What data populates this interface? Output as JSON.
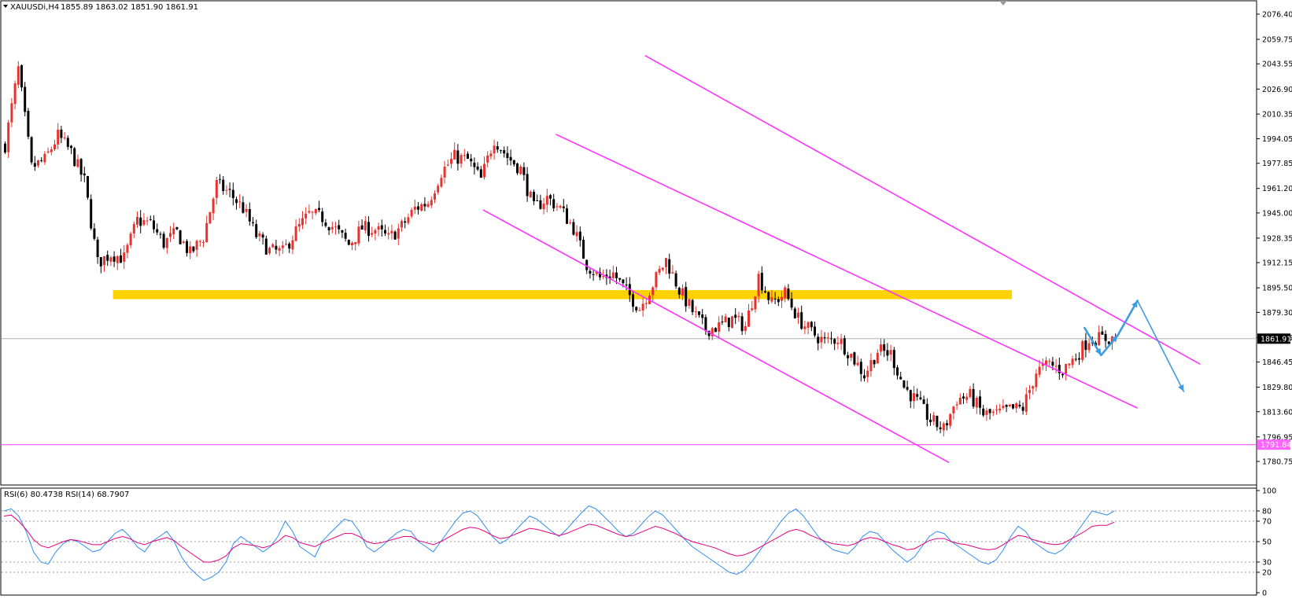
{
  "header": {
    "symbol_label": "XAUUSDi,H4",
    "ohlc_text": "1855.89 1863.02 1851.90 1861.91",
    "menu_icon": "triangle-down-icon"
  },
  "indicator": {
    "label": "RSI(6) 80.4738  RSI(14) 68.7907",
    "rsi6_last": 80.4738,
    "rsi14_last": 68.7907
  },
  "colors": {
    "background": "#ffffff",
    "bull_candle": "#e8322f",
    "bear_candle": "#000000",
    "channel": "#ff33ff",
    "support_zone": "#ffd200",
    "projection_arrow": "#3d9be0",
    "rsi6": "#2f8cf0",
    "rsi14": "#e6007e",
    "current_price_tag": "#000000",
    "low_level_tag": "#ff66ff"
  },
  "chart_data": [
    {
      "type": "candlestick",
      "symbol": "XAUUSDi",
      "timeframe": "H4",
      "ylim": [
        1780.75,
        2083
      ],
      "y_ticks": [
        "2076.40",
        "2059.75",
        "2043.55",
        "2026.90",
        "2010.35",
        "1994.05",
        "1977.85",
        "1961.20",
        "1945.00",
        "1928.35",
        "1912.15",
        "1895.50",
        "1879.30",
        "1862.65",
        "1846.45",
        "1829.80",
        "1813.60",
        "1796.95",
        "1780.75"
      ],
      "current_price": 1861.91,
      "current_price_label": "1861.91",
      "low_level": 1791.84,
      "low_level_label": "1791.84",
      "support_zone": [
        1888,
        1894
      ],
      "close_path": [
        [
          0,
          1990
        ],
        [
          4,
          2040
        ],
        [
          8,
          1975
        ],
        [
          12,
          1980
        ],
        [
          16,
          1996
        ],
        [
          20,
          1985
        ],
        [
          24,
          1966
        ],
        [
          28,
          1912
        ],
        [
          32,
          1918
        ],
        [
          36,
          1915
        ],
        [
          40,
          1940
        ],
        [
          44,
          1938
        ],
        [
          48,
          1925
        ],
        [
          52,
          1932
        ],
        [
          56,
          1918
        ],
        [
          60,
          1929
        ],
        [
          64,
          1964
        ],
        [
          68,
          1958
        ],
        [
          72,
          1948
        ],
        [
          76,
          1930
        ],
        [
          80,
          1920
        ],
        [
          84,
          1919
        ],
        [
          88,
          1933
        ],
        [
          92,
          1944
        ],
        [
          96,
          1942
        ],
        [
          100,
          1934
        ],
        [
          104,
          1924
        ],
        [
          108,
          1935
        ],
        [
          112,
          1934
        ],
        [
          116,
          1928
        ],
        [
          120,
          1936
        ],
        [
          124,
          1948
        ],
        [
          128,
          1952
        ],
        [
          132,
          1972
        ],
        [
          136,
          1982
        ],
        [
          140,
          1980
        ],
        [
          144,
          1967
        ],
        [
          148,
          1994
        ],
        [
          152,
          1982
        ],
        [
          156,
          1974
        ],
        [
          160,
          1948
        ],
        [
          164,
          1955
        ],
        [
          168,
          1948
        ],
        [
          172,
          1935
        ],
        [
          176,
          1911
        ],
        [
          180,
          1902
        ],
        [
          184,
          1905
        ],
        [
          188,
          1893
        ],
        [
          192,
          1882
        ],
        [
          196,
          1898
        ],
        [
          200,
          1914
        ],
        [
          204,
          1894
        ],
        [
          208,
          1880
        ],
        [
          212,
          1868
        ],
        [
          216,
          1870
        ],
        [
          220,
          1875
        ],
        [
          224,
          1870
        ],
        [
          228,
          1903
        ],
        [
          232,
          1885
        ],
        [
          236,
          1892
        ],
        [
          240,
          1875
        ],
        [
          244,
          1866
        ],
        [
          248,
          1860
        ],
        [
          252,
          1862
        ],
        [
          256,
          1851
        ],
        [
          260,
          1838
        ],
        [
          264,
          1854
        ],
        [
          268,
          1852
        ],
        [
          272,
          1830
        ],
        [
          276,
          1820
        ],
        [
          280,
          1808
        ],
        [
          284,
          1802
        ],
        [
          288,
          1822
        ],
        [
          292,
          1824
        ],
        [
          296,
          1812
        ],
        [
          300,
          1812
        ],
        [
          304,
          1815
        ],
        [
          308,
          1816
        ],
        [
          312,
          1840
        ],
        [
          316,
          1845
        ],
        [
          320,
          1841
        ],
        [
          324,
          1850
        ],
        [
          328,
          1862
        ]
      ],
      "channels": [
        {
          "name": "upper-channel",
          "points": [
            [
              194,
              2049
            ],
            [
              362,
              1845
            ]
          ]
        },
        {
          "name": "middle-channel",
          "points": [
            [
              167,
              1997
            ],
            [
              343,
              1816
            ]
          ]
        },
        {
          "name": "lower-channel",
          "points": [
            [
              145,
              1947
            ],
            [
              286,
              1780
            ]
          ]
        }
      ],
      "projection": [
        [
          327,
          1869
        ],
        [
          332,
          1851
        ],
        [
          337,
          1864
        ],
        [
          343,
          1887
        ],
        [
          357,
          1827
        ]
      ]
    },
    {
      "type": "line",
      "name": "RSI",
      "ylim": [
        0,
        100
      ],
      "y_ticks": [
        100,
        80,
        70,
        50,
        30,
        20,
        0
      ],
      "series": [
        {
          "name": "RSI(6)",
          "values": [
            80,
            82,
            75,
            60,
            40,
            30,
            28,
            40,
            48,
            52,
            50,
            45,
            40,
            42,
            50,
            58,
            62,
            55,
            45,
            40,
            50,
            55,
            60,
            50,
            35,
            25,
            18,
            12,
            15,
            20,
            30,
            48,
            55,
            50,
            45,
            40,
            45,
            55,
            70,
            60,
            45,
            40,
            35,
            50,
            58,
            65,
            72,
            70,
            60,
            45,
            40,
            45,
            52,
            58,
            62,
            60,
            50,
            45,
            40,
            50,
            60,
            70,
            78,
            80,
            75,
            65,
            55,
            48,
            52,
            60,
            68,
            75,
            72,
            66,
            60,
            55,
            62,
            70,
            78,
            85,
            82,
            75,
            68,
            60,
            55,
            58,
            66,
            74,
            80,
            76,
            68,
            60,
            52,
            45,
            40,
            35,
            30,
            25,
            20,
            18,
            22,
            30,
            40,
            50,
            60,
            70,
            78,
            82,
            75,
            65,
            55,
            48,
            42,
            40,
            38,
            45,
            55,
            60,
            58,
            50,
            42,
            36,
            30,
            35,
            45,
            55,
            60,
            58,
            50,
            45,
            40,
            35,
            30,
            28,
            32,
            42,
            55,
            65,
            60,
            50,
            45,
            40,
            38,
            42,
            50,
            60,
            70,
            80,
            78,
            76,
            80
          ]
        },
        {
          "name": "RSI(14)",
          "values": [
            75,
            76,
            70,
            62,
            52,
            46,
            44,
            47,
            50,
            52,
            51,
            49,
            47,
            47,
            50,
            53,
            55,
            53,
            49,
            47,
            50,
            52,
            54,
            51,
            45,
            40,
            35,
            30,
            30,
            32,
            36,
            44,
            48,
            47,
            46,
            44,
            46,
            50,
            56,
            54,
            49,
            47,
            45,
            49,
            52,
            55,
            58,
            58,
            55,
            50,
            48,
            49,
            51,
            53,
            55,
            55,
            51,
            49,
            47,
            50,
            54,
            58,
            62,
            64,
            63,
            60,
            56,
            53,
            54,
            57,
            60,
            63,
            62,
            60,
            58,
            56,
            58,
            61,
            64,
            67,
            66,
            63,
            60,
            57,
            55,
            56,
            59,
            62,
            65,
            63,
            60,
            57,
            53,
            50,
            48,
            46,
            44,
            41,
            38,
            36,
            37,
            40,
            44,
            48,
            52,
            56,
            60,
            62,
            60,
            56,
            53,
            50,
            48,
            47,
            46,
            48,
            52,
            54,
            53,
            50,
            47,
            45,
            42,
            43,
            47,
            51,
            53,
            53,
            50,
            48,
            47,
            45,
            43,
            42,
            43,
            47,
            52,
            56,
            55,
            52,
            50,
            48,
            47,
            48,
            52,
            56,
            60,
            65,
            66,
            66,
            69
          ]
        }
      ],
      "levels": [
        80,
        30
      ]
    }
  ]
}
